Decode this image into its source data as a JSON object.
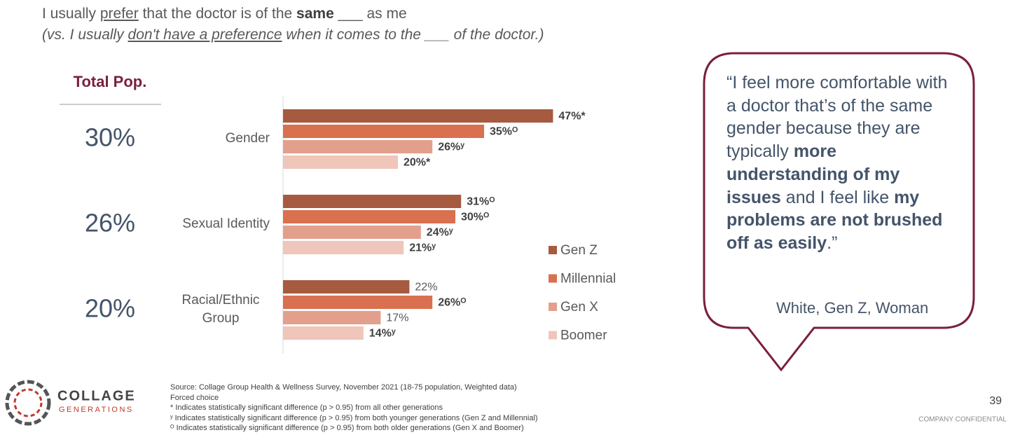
{
  "header": {
    "title": [
      "I usually ",
      "prefer",
      " that the doctor is of the ",
      "same",
      " ___ as me"
    ],
    "subtitle": [
      "(vs. I usually ",
      "don't have a preference",
      " when it comes to the ___ of the doctor.)"
    ]
  },
  "chart_data": {
    "type": "hbar",
    "categories": [
      "Gender",
      "Sexual Identity",
      "Racial/Ethnic Group"
    ],
    "series": [
      {
        "name": "Gen Z",
        "color": "#a65a40",
        "values": [
          47,
          31,
          22
        ],
        "value_labels": [
          "47%*",
          "31%ᴼ",
          "22%"
        ],
        "bold": [
          true,
          true,
          false
        ]
      },
      {
        "name": "Millennial",
        "color": "#d9704f",
        "values": [
          35,
          30,
          26
        ],
        "value_labels": [
          "35%ᴼ",
          "30%ᴼ",
          "26%ᴼ"
        ],
        "bold": [
          true,
          true,
          true
        ]
      },
      {
        "name": "Gen X",
        "color": "#e2a08c",
        "values": [
          26,
          24,
          17
        ],
        "value_labels": [
          "26%ʸ",
          "24%ʸ",
          "17%"
        ],
        "bold": [
          true,
          true,
          false
        ]
      },
      {
        "name": "Boomer",
        "color": "#f0c5ba",
        "values": [
          20,
          21,
          14
        ],
        "value_labels": [
          "20%*",
          "21%ʸ",
          "14%ʸ"
        ],
        "bold": [
          true,
          true,
          true
        ]
      }
    ],
    "xlim": [
      0,
      50
    ],
    "totals": {
      "title": "Total Pop.",
      "values": [
        30,
        26,
        20
      ],
      "value_labels": [
        "30%",
        "26%",
        "20%"
      ]
    }
  },
  "quote": {
    "text": [
      "“I feel more comfortable with a doctor that’s of the same gender because they are typically ",
      "more understanding of my issues",
      " and I feel like ",
      "my problems are not brushed off as easily",
      ".”"
    ],
    "attribution": "White, Gen Z, Woman"
  },
  "footer": {
    "notes": [
      "Source: Collage Group Health & Wellness Survey, November 2021 (18-75 population, Weighted data)",
      "Forced choice",
      "* Indicates statistically significant difference (p > 0.95) from all other generations",
      "ʸ Indicates statistically significant difference (p > 0.95) from both younger generations (Gen Z and Millennial)",
      "ᴼ Indicates statistically significant difference (p > 0.95) from both older generations (Gen X and Boomer)"
    ],
    "logo": [
      "COLLAGE",
      "GENERATIONS"
    ],
    "page_number": "39",
    "confidential": "COMPANY CONFIDENTIAL"
  }
}
